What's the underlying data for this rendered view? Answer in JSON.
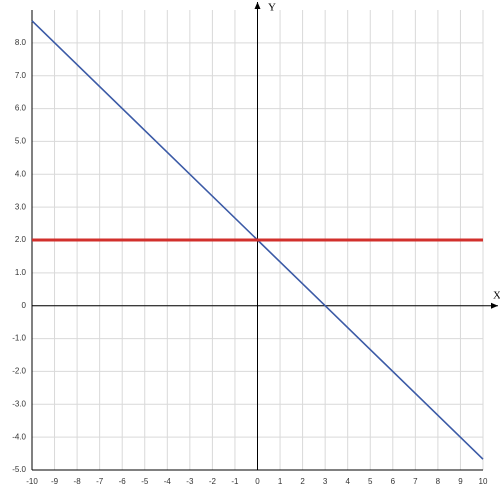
{
  "chart_data": {
    "type": "line",
    "x_label": "X",
    "y_label": "Y",
    "x": [
      -10,
      0,
      3,
      10
    ],
    "series": [
      {
        "color": "#3b5aa6",
        "values": [
          8.67,
          2,
          0,
          -4.67
        ]
      },
      {
        "color": "#d2302c",
        "values": [
          2,
          2,
          2,
          2
        ]
      }
    ],
    "xlim": [
      -10,
      10
    ],
    "xticks": [
      -10,
      -9,
      -8,
      -7,
      -6,
      -5,
      -4,
      -3,
      -2,
      -1,
      0,
      1,
      2,
      3,
      4,
      5,
      6,
      7,
      8,
      9,
      10
    ],
    "ylim": [
      -5,
      9
    ],
    "yticks": [
      {
        "value": -5,
        "label": "-5.0"
      },
      {
        "value": -4,
        "label": "-4.0"
      },
      {
        "value": -3,
        "label": "-3.0"
      },
      {
        "value": -2,
        "label": "-2.0"
      },
      {
        "value": -1,
        "label": "-1.0"
      },
      0,
      {
        "value": 1,
        "label": "1.0"
      },
      {
        "value": 2,
        "label": "2.0"
      },
      {
        "value": 3,
        "label": "3.0"
      },
      {
        "value": 4,
        "label": "4.0"
      },
      {
        "value": 5,
        "label": "5.0"
      },
      {
        "value": 6,
        "label": "6.0"
      },
      {
        "value": 7,
        "label": "7.0"
      },
      {
        "value": 8,
        "label": "8.0"
      }
    ],
    "grid": true
  }
}
